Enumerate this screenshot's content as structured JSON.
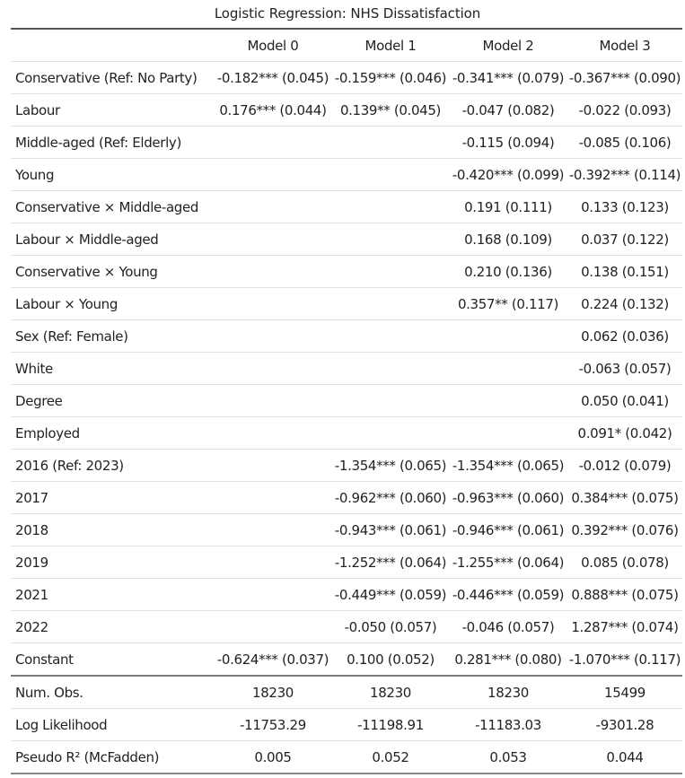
{
  "caption": "Logistic Regression: NHS Dissatisfaction",
  "columns": [
    "",
    "Model 0",
    "Model 1",
    "Model 2",
    "Model 3"
  ],
  "rows": [
    {
      "label": "Conservative (Ref: No Party)",
      "cells": [
        "-0.182*** (0.045)",
        "-0.159*** (0.046)",
        "-0.341*** (0.079)",
        "-0.367*** (0.090)"
      ]
    },
    {
      "label": "Labour",
      "cells": [
        "0.176*** (0.044)",
        "0.139** (0.045)",
        "-0.047 (0.082)",
        "-0.022 (0.093)"
      ]
    },
    {
      "label": "Middle-aged (Ref: Elderly)",
      "cells": [
        "",
        "",
        "-0.115 (0.094)",
        "-0.085 (0.106)"
      ]
    },
    {
      "label": "Young",
      "cells": [
        "",
        "",
        "-0.420*** (0.099)",
        "-0.392*** (0.114)"
      ]
    },
    {
      "label": "Conservative × Middle-aged",
      "cells": [
        "",
        "",
        "0.191 (0.111)",
        "0.133 (0.123)"
      ]
    },
    {
      "label": "Labour × Middle-aged",
      "cells": [
        "",
        "",
        "0.168 (0.109)",
        "0.037 (0.122)"
      ]
    },
    {
      "label": "Conservative × Young",
      "cells": [
        "",
        "",
        "0.210 (0.136)",
        "0.138 (0.151)"
      ]
    },
    {
      "label": "Labour × Young",
      "cells": [
        "",
        "",
        "0.357** (0.117)",
        "0.224 (0.132)"
      ]
    },
    {
      "label": "Sex (Ref: Female)",
      "cells": [
        "",
        "",
        "",
        "0.062 (0.036)"
      ]
    },
    {
      "label": "White",
      "cells": [
        "",
        "",
        "",
        "-0.063 (0.057)"
      ]
    },
    {
      "label": "Degree",
      "cells": [
        "",
        "",
        "",
        "0.050 (0.041)"
      ]
    },
    {
      "label": "Employed",
      "cells": [
        "",
        "",
        "",
        "0.091* (0.042)"
      ]
    },
    {
      "label": "2016 (Ref: 2023)",
      "cells": [
        "",
        "-1.354*** (0.065)",
        "-1.354*** (0.065)",
        "-0.012 (0.079)"
      ]
    },
    {
      "label": "2017",
      "cells": [
        "",
        "-0.962*** (0.060)",
        "-0.963*** (0.060)",
        "0.384*** (0.075)"
      ]
    },
    {
      "label": "2018",
      "cells": [
        "",
        "-0.943*** (0.061)",
        "-0.946*** (0.061)",
        "0.392*** (0.076)"
      ]
    },
    {
      "label": "2019",
      "cells": [
        "",
        "-1.252*** (0.064)",
        "-1.255*** (0.064)",
        "0.085 (0.078)"
      ]
    },
    {
      "label": "2021",
      "cells": [
        "",
        "-0.449*** (0.059)",
        "-0.446*** (0.059)",
        "0.888*** (0.075)"
      ]
    },
    {
      "label": "2022",
      "cells": [
        "",
        "-0.050 (0.057)",
        "-0.046 (0.057)",
        "1.287*** (0.074)"
      ]
    },
    {
      "label": "Constant",
      "cells": [
        "-0.624*** (0.037)",
        "0.100 (0.052)",
        "0.281*** (0.080)",
        "-1.070*** (0.117)"
      ]
    }
  ],
  "gof": [
    {
      "label": "Num. Obs.",
      "cells": [
        "18230",
        "18230",
        "18230",
        "15499"
      ]
    },
    {
      "label": "Log Likelihood",
      "cells": [
        "-11753.29",
        "-11198.91",
        "-11183.03",
        "-9301.28"
      ]
    },
    {
      "label": "Pseudo R² (McFadden)",
      "cells": [
        "0.005",
        "0.052",
        "0.053",
        "0.044"
      ]
    }
  ]
}
